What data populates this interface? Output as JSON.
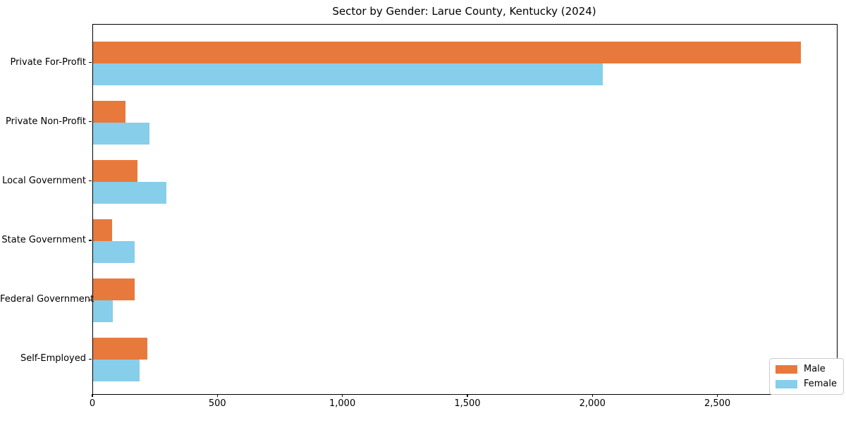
{
  "chart_data": {
    "type": "bar",
    "orientation": "horizontal",
    "title": "Sector by Gender: Larue County, Kentucky (2024)",
    "categories": [
      "Private For-Profit",
      "Private Non-Profit",
      "Local Government",
      "State Government",
      "Federal Government",
      "Self-Employed"
    ],
    "series": [
      {
        "name": "Male",
        "color": "#E8793D",
        "values": [
          2830,
          130,
          178,
          77,
          167,
          218
        ]
      },
      {
        "name": "Female",
        "color": "#87CEEB",
        "values": [
          2040,
          225,
          293,
          167,
          80,
          185
        ]
      }
    ],
    "x_ticks": [
      0,
      500,
      1000,
      1500,
      2000,
      2500
    ],
    "x_tick_labels": [
      "0",
      "500",
      "1,000",
      "1,500",
      "2,000",
      "2,500"
    ],
    "xlim": [
      0,
      2975
    ],
    "xlabel": "",
    "ylabel": "",
    "grid": false,
    "legend_position": "lower right",
    "plot_background": "#ffffff",
    "frame_color": "#000000"
  }
}
